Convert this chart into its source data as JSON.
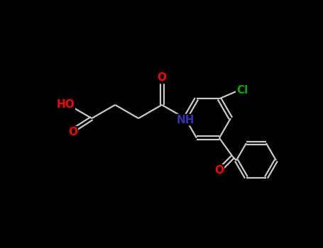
{
  "background_color": "#000000",
  "bond_color": "#c8c8c8",
  "atom_colors": {
    "O": "#ff0000",
    "N": "#3333aa",
    "Cl": "#00aa00",
    "C": "#c8c8c8"
  },
  "figsize": [
    4.55,
    3.5
  ],
  "dpi": 100,
  "bond_lw": 1.6,
  "font_size": 10
}
